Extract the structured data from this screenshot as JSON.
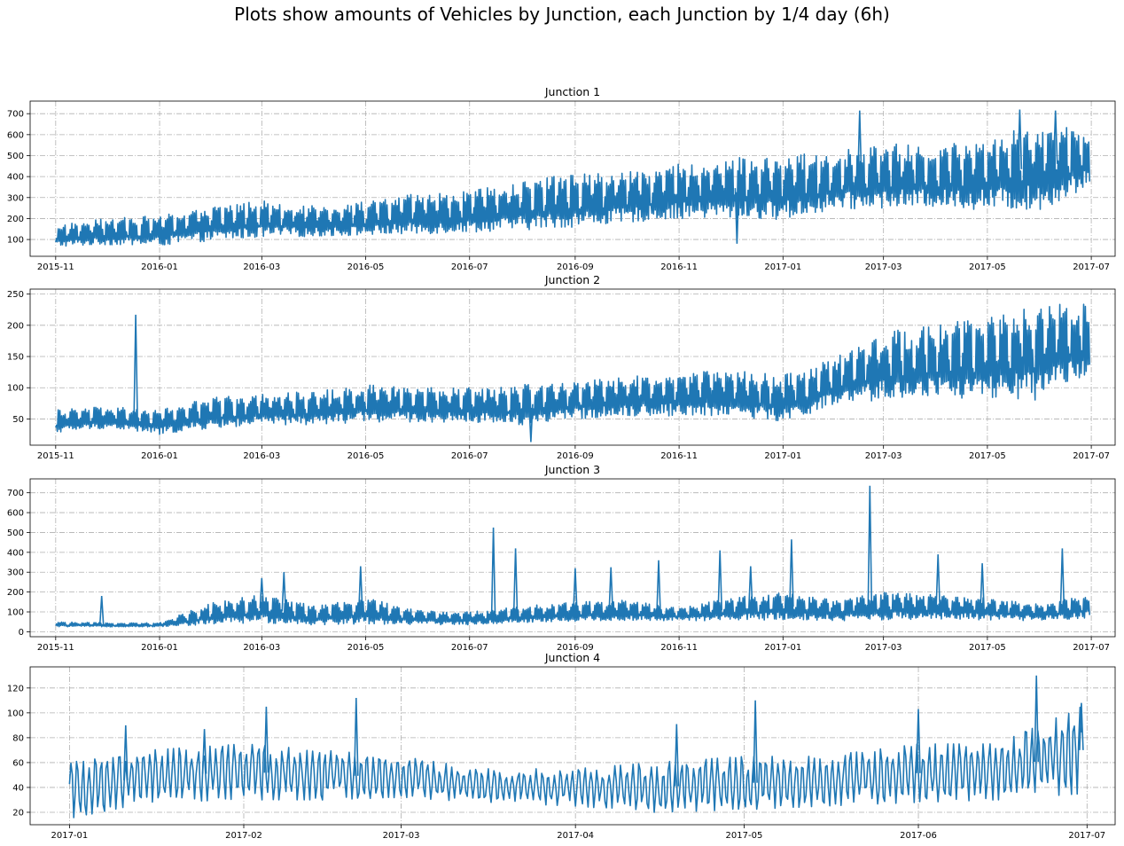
{
  "figure": {
    "suptitle": "Plots show amounts of Vehicles by Junction, each Junction by 1/4 day (6h)",
    "line_color": "#1f77b4",
    "grid_color": "#b0b0b0"
  },
  "chart_data": [
    {
      "type": "line",
      "title": "Junction 1",
      "xlabel": "",
      "ylabel": "",
      "grid": true,
      "xlim": [
        "2015-10-17",
        "2017-07-15"
      ],
      "ylim": [
        20,
        760
      ],
      "x_ticks": [
        "2015-11",
        "2016-01",
        "2016-03",
        "2016-05",
        "2016-07",
        "2016-09",
        "2016-11",
        "2017-01",
        "2017-03",
        "2017-05",
        "2017-07"
      ],
      "y_ticks": [
        100,
        200,
        300,
        400,
        500,
        600,
        700
      ],
      "series": [
        {
          "x": [
            "2015-11-01",
            "2015-12-01",
            "2016-01-01",
            "2016-02-01",
            "2016-03-01",
            "2016-04-01",
            "2016-05-01",
            "2016-06-01",
            "2016-07-01",
            "2016-08-01",
            "2016-09-01",
            "2016-10-01",
            "2016-11-01",
            "2016-12-01",
            "2017-01-01",
            "2017-02-01",
            "2017-03-01",
            "2017-04-01",
            "2017-05-01",
            "2017-06-01",
            "2017-06-30"
          ],
          "low": [
            65,
            75,
            70,
            95,
            110,
            115,
            120,
            125,
            135,
            145,
            160,
            180,
            200,
            200,
            195,
            240,
            250,
            255,
            240,
            240,
            350
          ],
          "high": [
            170,
            200,
            215,
            260,
            290,
            260,
            280,
            320,
            330,
            380,
            420,
            420,
            460,
            490,
            500,
            520,
            560,
            540,
            600,
            650,
            640
          ],
          "spikes": [
            {
              "x": "2017-02-15",
              "y": 715
            },
            {
              "x": "2017-05-20",
              "y": 720
            },
            {
              "x": "2017-06-10",
              "y": 715
            },
            {
              "x": "2016-12-05",
              "y": 80
            }
          ],
          "values_note": "approx envelope"
        }
      ]
    },
    {
      "type": "line",
      "title": "Junction 2",
      "xlabel": "",
      "ylabel": "",
      "grid": true,
      "xlim": [
        "2015-10-17",
        "2017-07-15"
      ],
      "ylim": [
        8,
        258
      ],
      "x_ticks": [
        "2015-11",
        "2016-01",
        "2016-03",
        "2016-05",
        "2016-07",
        "2016-09",
        "2016-11",
        "2017-01",
        "2017-03",
        "2017-05",
        "2017-07"
      ],
      "y_ticks": [
        50,
        100,
        150,
        200,
        250
      ],
      "series": [
        {
          "x": [
            "2015-11-01",
            "2015-12-01",
            "2016-01-01",
            "2016-02-01",
            "2016-03-01",
            "2016-04-01",
            "2016-05-01",
            "2016-06-01",
            "2016-07-01",
            "2016-08-01",
            "2016-09-01",
            "2016-10-01",
            "2016-11-01",
            "2016-12-01",
            "2017-01-01",
            "2017-02-01",
            "2017-03-01",
            "2017-04-01",
            "2017-05-01",
            "2017-06-01",
            "2017-06-30"
          ],
          "low": [
            28,
            35,
            25,
            35,
            40,
            40,
            45,
            45,
            45,
            40,
            50,
            55,
            55,
            55,
            45,
            70,
            80,
            85,
            80,
            80,
            125
          ],
          "high": [
            65,
            70,
            65,
            85,
            90,
            95,
            105,
            100,
            100,
            105,
            110,
            120,
            125,
            130,
            120,
            150,
            190,
            200,
            215,
            235,
            235
          ],
          "spikes": [
            {
              "x": "2015-12-18",
              "y": 217
            },
            {
              "x": "2016-08-06",
              "y": 13
            }
          ],
          "values_note": "approx envelope"
        }
      ]
    },
    {
      "type": "line",
      "title": "Junction 3",
      "xlabel": "",
      "ylabel": "",
      "grid": true,
      "xlim": [
        "2015-10-17",
        "2017-07-15"
      ],
      "ylim": [
        -25,
        770
      ],
      "x_ticks": [
        "2015-11",
        "2016-01",
        "2016-03",
        "2016-05",
        "2016-07",
        "2016-09",
        "2016-11",
        "2017-01",
        "2017-03",
        "2017-05",
        "2017-07"
      ],
      "y_ticks": [
        0,
        100,
        200,
        300,
        400,
        500,
        600,
        700
      ],
      "series": [
        {
          "x": [
            "2015-11-01",
            "2015-12-01",
            "2016-01-01",
            "2016-02-01",
            "2016-03-01",
            "2016-04-01",
            "2016-05-01",
            "2016-06-01",
            "2016-07-01",
            "2016-08-01",
            "2016-09-01",
            "2016-10-01",
            "2016-11-01",
            "2016-12-01",
            "2017-01-01",
            "2017-02-01",
            "2017-03-01",
            "2017-04-01",
            "2017-05-01",
            "2017-06-01",
            "2017-06-30"
          ],
          "low": [
            25,
            25,
            25,
            35,
            45,
            35,
            40,
            35,
            35,
            45,
            50,
            55,
            55,
            55,
            60,
            55,
            60,
            65,
            60,
            55,
            70
          ],
          "high": [
            50,
            45,
            45,
            150,
            190,
            130,
            170,
            110,
            100,
            130,
            150,
            160,
            120,
            170,
            200,
            160,
            200,
            190,
            170,
            140,
            190
          ],
          "spikes": [
            {
              "x": "2015-11-28",
              "y": 180
            },
            {
              "x": "2016-03-01",
              "y": 270
            },
            {
              "x": "2016-03-14",
              "y": 300
            },
            {
              "x": "2016-04-28",
              "y": 330
            },
            {
              "x": "2016-07-15",
              "y": 525
            },
            {
              "x": "2016-07-28",
              "y": 420
            },
            {
              "x": "2016-09-01",
              "y": 320
            },
            {
              "x": "2016-09-22",
              "y": 325
            },
            {
              "x": "2016-10-20",
              "y": 360
            },
            {
              "x": "2016-11-25",
              "y": 410
            },
            {
              "x": "2016-12-13",
              "y": 330
            },
            {
              "x": "2017-01-06",
              "y": 465
            },
            {
              "x": "2017-02-21",
              "y": 735
            },
            {
              "x": "2017-04-02",
              "y": 390
            },
            {
              "x": "2017-04-28",
              "y": 345
            },
            {
              "x": "2017-06-14",
              "y": 420
            }
          ],
          "values_note": "approx envelope"
        }
      ]
    },
    {
      "type": "line",
      "title": "Junction 4",
      "xlabel": "",
      "ylabel": "",
      "grid": true,
      "xlim": [
        "2016-12-25",
        "2017-07-06"
      ],
      "ylim": [
        10,
        137
      ],
      "x_ticks": [
        "2017-01",
        "2017-02",
        "2017-03",
        "2017-04",
        "2017-05",
        "2017-06",
        "2017-07"
      ],
      "y_ticks": [
        20,
        40,
        60,
        80,
        100,
        120
      ],
      "series": [
        {
          "x": [
            "2017-01-01",
            "2017-01-15",
            "2017-02-01",
            "2017-02-15",
            "2017-03-01",
            "2017-03-15",
            "2017-04-01",
            "2017-04-15",
            "2017-05-01",
            "2017-05-15",
            "2017-06-01",
            "2017-06-15",
            "2017-06-30"
          ],
          "low": [
            15,
            28,
            30,
            30,
            32,
            28,
            25,
            20,
            22,
            25,
            28,
            30,
            35
          ],
          "high": [
            60,
            70,
            75,
            70,
            65,
            55,
            55,
            60,
            65,
            65,
            75,
            75,
            105
          ],
          "spikes": [
            {
              "x": "2017-01-11",
              "y": 90
            },
            {
              "x": "2017-01-25",
              "y": 87
            },
            {
              "x": "2017-02-05",
              "y": 105
            },
            {
              "x": "2017-02-21",
              "y": 112
            },
            {
              "x": "2017-04-19",
              "y": 91
            },
            {
              "x": "2017-05-03",
              "y": 110
            },
            {
              "x": "2017-06-01",
              "y": 103
            },
            {
              "x": "2017-06-22",
              "y": 130
            },
            {
              "x": "2017-06-30",
              "y": 108
            }
          ],
          "values_note": "approx envelope"
        }
      ]
    }
  ]
}
